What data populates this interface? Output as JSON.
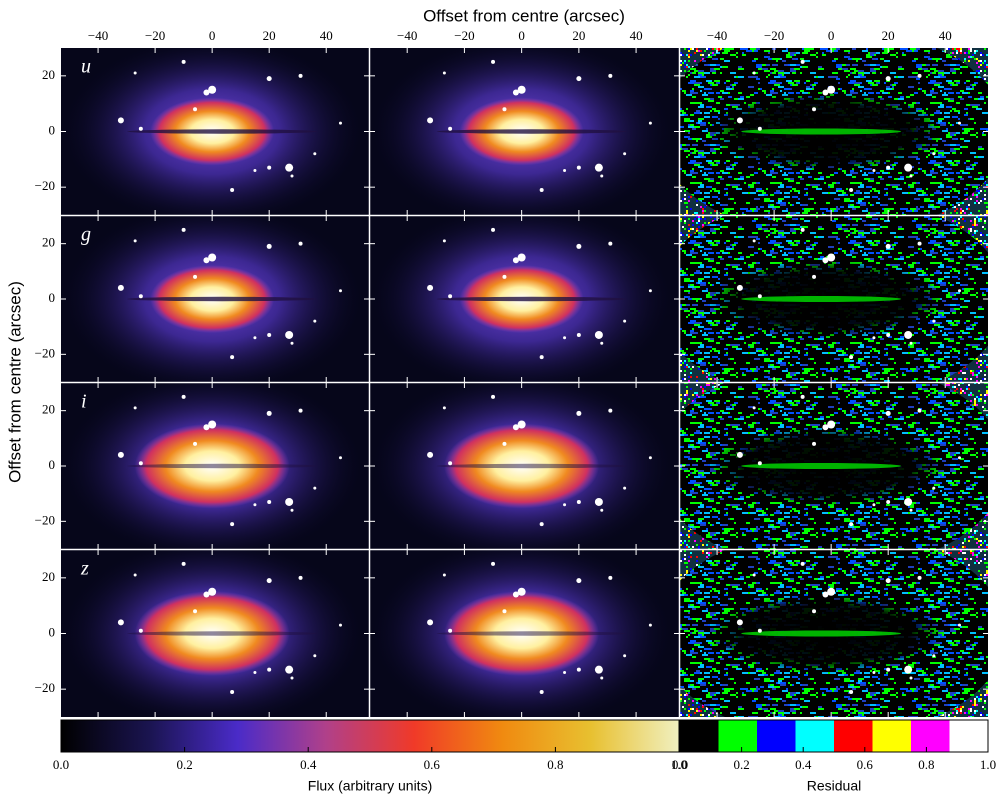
{
  "chart_data": {
    "type": "image-grid",
    "x_label": "Offset from centre (arcsec)",
    "y_label": "Offset from centre (arcsec)",
    "rows": [
      "u",
      "g",
      "i",
      "z"
    ],
    "xlim": [
      -53,
      55
    ],
    "ylim": [
      -30,
      30
    ],
    "xticks": [
      {
        "value": -40,
        "label": "−40"
      },
      {
        "value": -20,
        "label": "−20"
      },
      0,
      20,
      40
    ],
    "yticks": [
      {
        "value": -20,
        "label": "−20"
      },
      0,
      20
    ],
    "colorbars": [
      {
        "label": "Flux (arbitrary units)",
        "lim": [
          0,
          1
        ],
        "ticks": [
          {
            "value": 0,
            "label": "0.0"
          },
          0.2,
          0.4,
          0.6,
          0.8,
          {
            "value": 1,
            "label": "1.0"
          }
        ],
        "colors": [
          "#000000",
          "#1a1450",
          "#4a2bc8",
          "#b0408a",
          "#f03a28",
          "#f08a10",
          "#e8c030",
          "#f0f0c0"
        ]
      },
      {
        "label": "Residual",
        "lim": [
          0,
          1
        ],
        "ticks": [
          {
            "value": 0,
            "label": "0.0"
          },
          0.2,
          0.4,
          0.6,
          0.8,
          {
            "value": 1,
            "label": "1.0"
          }
        ],
        "colors": [
          "#000000",
          "#00ff00",
          "#0000ff",
          "#00ffff",
          "#ff0000",
          "#ffff00",
          "#ff00ff",
          "#ffffff"
        ]
      }
    ]
  }
}
